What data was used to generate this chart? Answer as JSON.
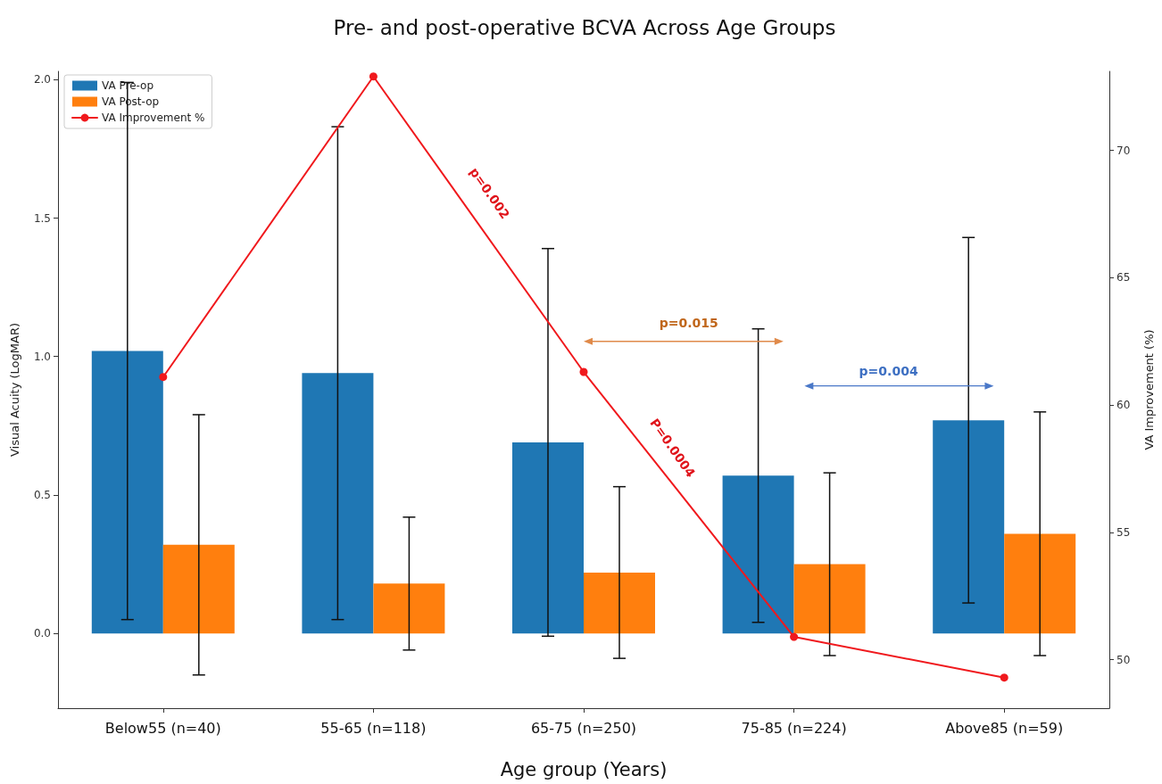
{
  "chart_data": {
    "type": "bar",
    "title": "Pre- and post-operative BCVA Across Age Groups",
    "xlabel": "Age group (Years)",
    "ylabel": "Visual Acuity (LogMAR)",
    "y2label": "VA Improvement (%)",
    "categories": [
      "Below55 (n=40)",
      "55-65 (n=118)",
      "65-75 (n=250)",
      "75-85 (n=224)",
      "Above85 (n=59)"
    ],
    "series": [
      {
        "name": "VA Pre-op",
        "color": "#1f77b4",
        "values": [
          1.02,
          0.94,
          0.69,
          0.57,
          0.77
        ],
        "errors": [
          0.97,
          0.89,
          0.7,
          0.53,
          0.66
        ]
      },
      {
        "name": "VA Post-op",
        "color": "#ff7f0e",
        "values": [
          0.32,
          0.18,
          0.22,
          0.25,
          0.36
        ],
        "errors": [
          0.47,
          0.24,
          0.31,
          0.33,
          0.44
        ]
      },
      {
        "name": "VA Improvement %",
        "type": "line",
        "axis": "y2",
        "color": "#f0191d",
        "values": [
          61.1,
          72.9,
          61.3,
          50.9,
          49.3
        ]
      }
    ],
    "ylim": [
      -0.27,
      2.03
    ],
    "yticks": [
      {
        "value": 0,
        "label": "0.0"
      },
      {
        "value": 0.5,
        "label": "0.5"
      },
      {
        "value": 1,
        "label": "1.0"
      },
      {
        "value": 1.5,
        "label": "1.5"
      },
      {
        "value": 2,
        "label": "2.0"
      }
    ],
    "y2lim": [
      48.1,
      73.1
    ],
    "y2ticks": [
      50,
      55,
      60,
      65,
      70
    ],
    "annotations": [
      "p=0.002",
      "p=0.015",
      "p=0.004",
      "P=0.0004"
    ],
    "legend": "top left",
    "grid": false,
    "marker": "circle",
    "line_style": "solid"
  }
}
